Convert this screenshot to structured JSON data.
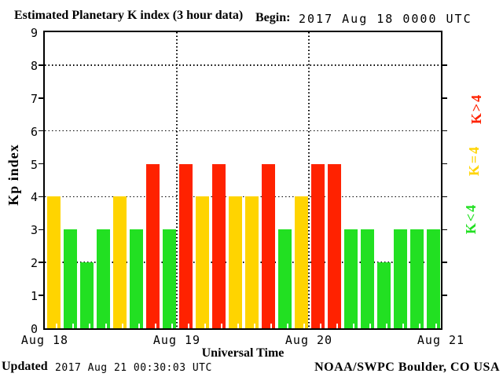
{
  "title": "Estimated Planetary K index (3 hour data)",
  "header": {
    "begin_label": "Begin:",
    "begin_value": "2017 Aug 18 0000 UTC"
  },
  "footer": {
    "updated_label": "Updated",
    "updated_value": "2017 Aug 21 00:30:03 UTC",
    "credit": "NOAA/SWPC Boulder, CO USA"
  },
  "chart_data": {
    "type": "bar",
    "title": "Estimated Planetary K index (3 hour data)",
    "xlabel": "Universal Time",
    "ylabel": "Kp index",
    "begin": "2017 Aug 18 0000 UTC",
    "interval_hours": 3,
    "ylim": [
      0,
      9
    ],
    "yticks": [
      0,
      1,
      2,
      3,
      4,
      5,
      6,
      7,
      8,
      9
    ],
    "gridlines_y": [
      2,
      4,
      6,
      8
    ],
    "xticklabels": [
      "Aug 18",
      "Aug 19",
      "Aug 20",
      "Aug 21"
    ],
    "values": [
      4,
      3,
      2,
      3,
      4,
      3,
      5,
      3,
      5,
      4,
      5,
      4,
      4,
      5,
      3,
      4,
      5,
      5,
      3,
      3,
      2,
      3,
      3,
      3
    ],
    "color_rules": {
      "below_4": "#22e022",
      "equal_4": "#ffd400",
      "above_4": "#ff2200"
    },
    "legend": [
      {
        "label": "K>4",
        "color": "#ff2200"
      },
      {
        "label": "K=4",
        "color": "#ffd400"
      },
      {
        "label": "K<4",
        "color": "#22e022"
      }
    ],
    "legend_position": "right",
    "grid": "dotted"
  }
}
